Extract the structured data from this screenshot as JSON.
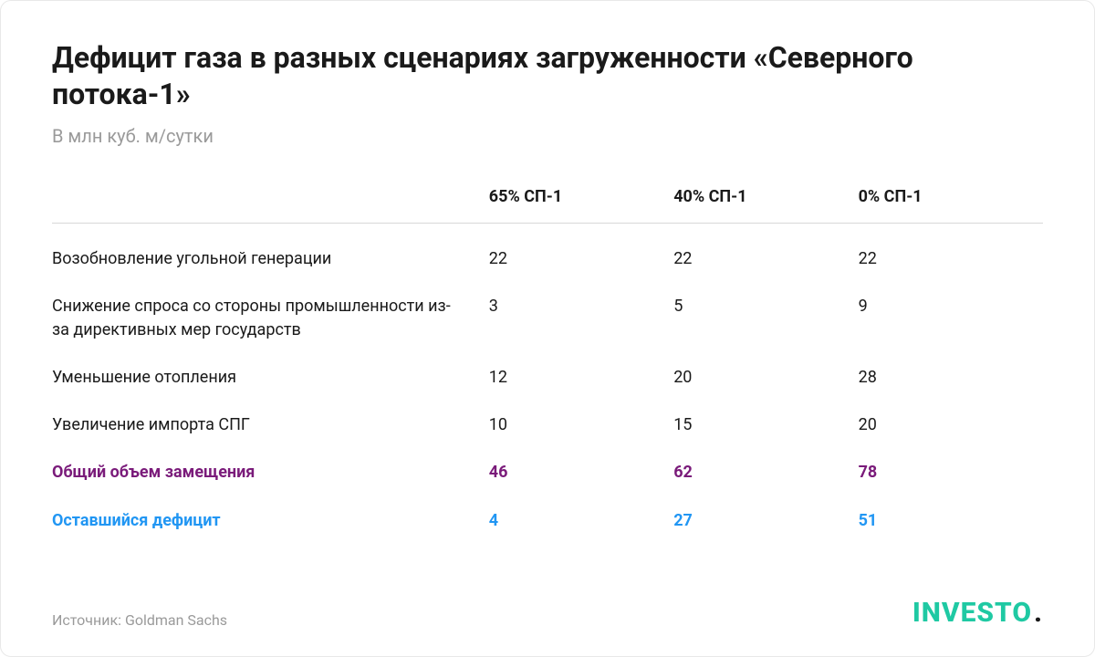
{
  "title": "Дефицит газа в разных сценариях загруженности «Северного потока-1»",
  "subtitle": "В млн куб. м/сутки",
  "table": {
    "type": "table",
    "columns": [
      "",
      "65% СП-1",
      "40% СП-1",
      "0% СП-1"
    ],
    "rows": [
      {
        "label": "Возобновление угольной генерации",
        "values": [
          "22",
          "22",
          "22"
        ],
        "style": "normal"
      },
      {
        "label": "Снижение спроса со стороны промышленности из-за директивных мер государств",
        "values": [
          "3",
          "5",
          "9"
        ],
        "style": "normal"
      },
      {
        "label": "Уменьшение отопления",
        "values": [
          "12",
          "20",
          "28"
        ],
        "style": "normal"
      },
      {
        "label": "Увеличение импорта СПГ",
        "values": [
          "10",
          "15",
          "20"
        ],
        "style": "normal"
      },
      {
        "label": "Общий объем замещения",
        "values": [
          "46",
          "62",
          "78"
        ],
        "style": "purple"
      },
      {
        "label": "Оставшийся дефицит",
        "values": [
          "4",
          "27",
          "51"
        ],
        "style": "blue"
      }
    ],
    "colors": {
      "text_normal": "#1a1a1a",
      "text_muted": "#9a9a9a",
      "border": "#d8d8d8",
      "purple": "#7a1b7a",
      "blue": "#2196f3",
      "background": "#ffffff",
      "logo_accent": "#1fc9a3"
    },
    "fontsize": {
      "title": 32,
      "subtitle": 20,
      "header": 18,
      "body": 18,
      "source": 16,
      "logo": 30
    }
  },
  "source": "Источник: Goldman Sachs",
  "logo": {
    "text": "INVESTO",
    "dot": "."
  }
}
